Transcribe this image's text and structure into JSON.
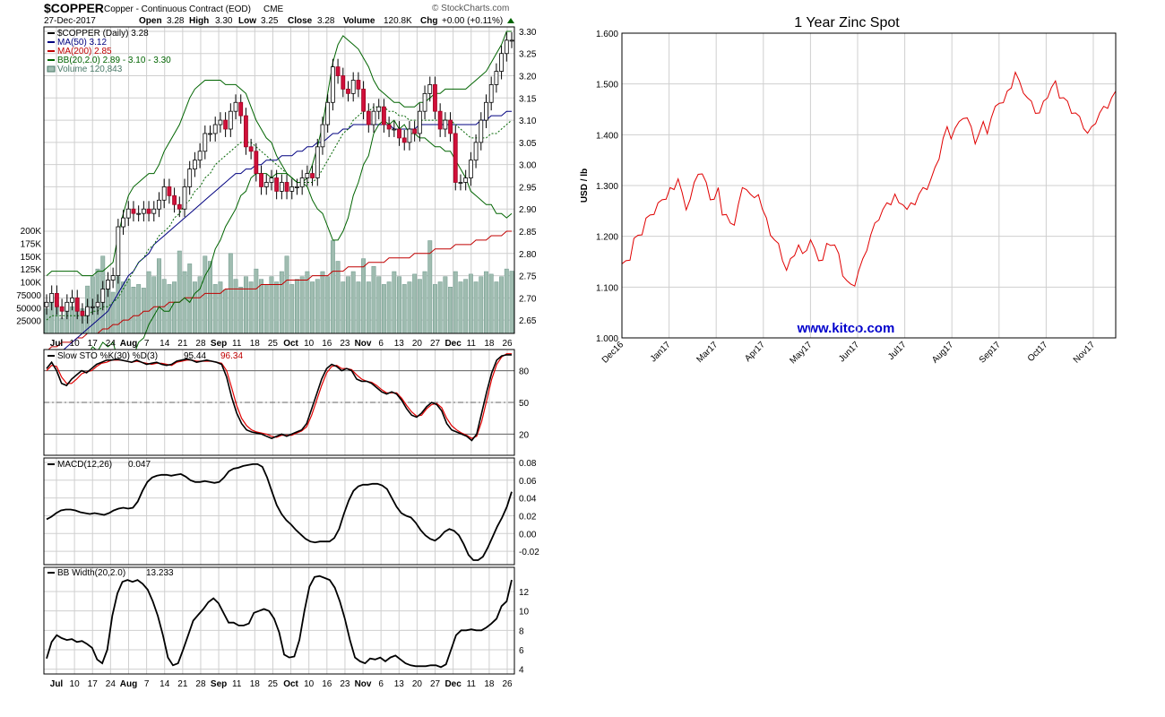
{
  "chart_data": [
    {
      "type": "candlestick",
      "header": {
        "symbol": "$COPPER",
        "subtitle": "Copper - Continuous Contract (EOD)",
        "exchange": "CME",
        "brand": "© StockCharts.com",
        "date": "27-Dec-2017",
        "open_label": "Open",
        "open": "3.28",
        "high_label": "High",
        "high": "3.30",
        "low_label": "Low",
        "low": "3.25",
        "close_label": "Close",
        "close": "3.28",
        "volume_label": "Volume",
        "volume": "120.8K",
        "chg_label": "Chg",
        "chg": "+0.00 (+0.11%)"
      },
      "legend": [
        {
          "text": "$COPPER (Daily) 3.28",
          "color": "#000000"
        },
        {
          "text": "MA(50) 3.12",
          "color": "#000080"
        },
        {
          "text": "MA(200) 2.85",
          "color": "#c00000"
        },
        {
          "text": "BB(20,2.0) 2.89 - 3.10 - 3.30",
          "color": "#006400"
        },
        {
          "text": "Volume 120,843",
          "color": "#4a7a68"
        }
      ],
      "price_ylim": [
        2.62,
        3.31
      ],
      "price_ticks": [
        "3.30",
        "3.25",
        "3.20",
        "3.15",
        "3.10",
        "3.05",
        "3.00",
        "2.95",
        "2.90",
        "2.85",
        "2.80",
        "2.75",
        "2.70",
        "2.65"
      ],
      "volume_ticks": [
        "200K",
        "175K",
        "150K",
        "125K",
        "100K",
        "75000",
        "50000",
        "25000"
      ],
      "volume_max": 200000,
      "x_labels": [
        "Jul",
        "10",
        "17",
        "24",
        "Aug",
        "7",
        "14",
        "21",
        "28",
        "Sep",
        "11",
        "18",
        "25",
        "Oct",
        "10",
        "16",
        "23",
        "Nov",
        "6",
        "13",
        "20",
        "27",
        "Dec",
        "11",
        "18",
        "26"
      ],
      "x_label_bold": [
        "Jul",
        "Aug",
        "Sep",
        "Oct",
        "Nov",
        "Dec"
      ],
      "closes": [
        2.69,
        2.71,
        2.68,
        2.67,
        2.69,
        2.7,
        2.67,
        2.66,
        2.68,
        2.68,
        2.69,
        2.72,
        2.74,
        2.75,
        2.86,
        2.88,
        2.9,
        2.89,
        2.89,
        2.9,
        2.89,
        2.9,
        2.92,
        2.95,
        2.93,
        2.91,
        2.9,
        2.95,
        2.99,
        3.01,
        3.03,
        3.07,
        3.07,
        3.09,
        3.1,
        3.08,
        3.12,
        3.14,
        3.11,
        3.04,
        3.03,
        2.98,
        2.95,
        2.96,
        2.97,
        2.94,
        2.96,
        2.94,
        2.95,
        2.95,
        2.97,
        2.98,
        2.97,
        3.04,
        3.09,
        3.14,
        3.22,
        3.2,
        3.17,
        3.16,
        3.19,
        3.17,
        3.12,
        3.09,
        3.12,
        3.13,
        3.09,
        3.08,
        3.08,
        3.06,
        3.05,
        3.08,
        3.07,
        3.12,
        3.16,
        3.18,
        3.12,
        3.08,
        3.1,
        3.07,
        2.96,
        2.96,
        2.97,
        3.01,
        3.05,
        3.1,
        3.14,
        3.18,
        3.21,
        3.25,
        3.28,
        3.28
      ],
      "volumes": [
        48000,
        72000,
        55000,
        30000,
        60000,
        52000,
        68000,
        48000,
        92000,
        110000,
        125000,
        150000,
        95000,
        80000,
        110000,
        100000,
        105000,
        90000,
        95000,
        88000,
        120000,
        110000,
        145000,
        105000,
        95000,
        100000,
        160000,
        120000,
        135000,
        100000,
        110000,
        150000,
        140000,
        95000,
        100000,
        85000,
        155000,
        105000,
        90000,
        110000,
        100000,
        125000,
        105000,
        95000,
        110000,
        100000,
        120000,
        150000,
        95000,
        105000,
        110000,
        120000,
        100000,
        105000,
        120000,
        110000,
        180000,
        140000,
        100000,
        110000,
        120000,
        100000,
        145000,
        100000,
        130000,
        110000,
        95000,
        100000,
        120000,
        110000,
        95000,
        100000,
        115000,
        105000,
        120000,
        180000,
        95000,
        100000,
        110000,
        90000,
        120000,
        100000,
        105000,
        115000,
        100000,
        110000,
        120000,
        115000,
        100000,
        110000,
        125000,
        120843
      ],
      "ma50": [
        2.56,
        2.57,
        2.58,
        2.58,
        2.59,
        2.6,
        2.61,
        2.62,
        2.63,
        2.64,
        2.65,
        2.66,
        2.67,
        2.69,
        2.71,
        2.73,
        2.75,
        2.76,
        2.78,
        2.79,
        2.8,
        2.82,
        2.83,
        2.84,
        2.85,
        2.86,
        2.87,
        2.88,
        2.89,
        2.9,
        2.91,
        2.92,
        2.93,
        2.94,
        2.95,
        2.96,
        2.97,
        2.98,
        2.98,
        2.99,
        2.99,
        3.0,
        3.0,
        3.01,
        3.01,
        3.01,
        3.02,
        3.02,
        3.02,
        3.03,
        3.03,
        3.04,
        3.04,
        3.05,
        3.05,
        3.06,
        3.07,
        3.07,
        3.08,
        3.08,
        3.09,
        3.09,
        3.09,
        3.09,
        3.09,
        3.09,
        3.09,
        3.09,
        3.08,
        3.08,
        3.08,
        3.08,
        3.08,
        3.09,
        3.09,
        3.09,
        3.09,
        3.09,
        3.09,
        3.09,
        3.09,
        3.09,
        3.09,
        3.09,
        3.09,
        3.1,
        3.1,
        3.11,
        3.11,
        3.11,
        3.12,
        3.12
      ],
      "ma200": [
        2.58,
        2.59,
        2.59,
        2.6,
        2.6,
        2.6,
        2.61,
        2.61,
        2.62,
        2.62,
        2.62,
        2.63,
        2.63,
        2.64,
        2.64,
        2.65,
        2.65,
        2.66,
        2.66,
        2.67,
        2.67,
        2.68,
        2.68,
        2.68,
        2.69,
        2.69,
        2.69,
        2.7,
        2.7,
        2.7,
        2.7,
        2.71,
        2.71,
        2.71,
        2.71,
        2.72,
        2.72,
        2.72,
        2.72,
        2.72,
        2.72,
        2.72,
        2.73,
        2.73,
        2.73,
        2.73,
        2.73,
        2.74,
        2.74,
        2.74,
        2.74,
        2.74,
        2.75,
        2.75,
        2.75,
        2.75,
        2.76,
        2.76,
        2.76,
        2.77,
        2.77,
        2.77,
        2.77,
        2.78,
        2.78,
        2.78,
        2.78,
        2.79,
        2.79,
        2.79,
        2.79,
        2.79,
        2.8,
        2.8,
        2.8,
        2.8,
        2.81,
        2.81,
        2.81,
        2.81,
        2.82,
        2.82,
        2.82,
        2.82,
        2.83,
        2.83,
        2.83,
        2.84,
        2.84,
        2.84,
        2.85,
        2.85
      ],
      "bb_upper": [
        2.75,
        2.76,
        2.76,
        2.76,
        2.76,
        2.76,
        2.76,
        2.75,
        2.75,
        2.75,
        2.76,
        2.76,
        2.77,
        2.78,
        2.84,
        2.89,
        2.93,
        2.95,
        2.96,
        2.97,
        2.98,
        2.98,
        3.0,
        3.03,
        3.05,
        3.07,
        3.09,
        3.12,
        3.15,
        3.17,
        3.18,
        3.19,
        3.19,
        3.19,
        3.19,
        3.18,
        3.18,
        3.18,
        3.17,
        3.16,
        3.13,
        3.1,
        3.08,
        3.06,
        3.05,
        3.02,
        3.0,
        2.98,
        2.97,
        2.96,
        2.96,
        2.97,
        3.0,
        3.04,
        3.09,
        3.16,
        3.23,
        3.27,
        3.29,
        3.28,
        3.27,
        3.26,
        3.24,
        3.22,
        3.19,
        3.17,
        3.16,
        3.15,
        3.14,
        3.14,
        3.13,
        3.13,
        3.13,
        3.14,
        3.14,
        3.15,
        3.16,
        3.16,
        3.17,
        3.17,
        3.17,
        3.17,
        3.17,
        3.18,
        3.19,
        3.2,
        3.21,
        3.23,
        3.25,
        3.27,
        3.3,
        3.3
      ],
      "bb_mid": [
        2.65,
        2.66,
        2.66,
        2.66,
        2.66,
        2.66,
        2.66,
        2.66,
        2.66,
        2.67,
        2.67,
        2.68,
        2.68,
        2.69,
        2.7,
        2.72,
        2.74,
        2.76,
        2.78,
        2.79,
        2.81,
        2.82,
        2.84,
        2.85,
        2.86,
        2.88,
        2.89,
        2.91,
        2.92,
        2.94,
        2.95,
        2.97,
        2.98,
        3.0,
        3.01,
        3.02,
        3.03,
        3.04,
        3.05,
        3.05,
        3.05,
        3.04,
        3.03,
        3.02,
        3.01,
        3.0,
        2.99,
        2.98,
        2.97,
        2.96,
        2.96,
        2.96,
        2.96,
        2.97,
        2.99,
        3.01,
        3.03,
        3.05,
        3.07,
        3.08,
        3.1,
        3.11,
        3.12,
        3.12,
        3.13,
        3.13,
        3.13,
        3.12,
        3.12,
        3.11,
        3.11,
        3.1,
        3.1,
        3.1,
        3.1,
        3.1,
        3.1,
        3.1,
        3.1,
        3.1,
        3.09,
        3.08,
        3.07,
        3.06,
        3.06,
        3.06,
        3.06,
        3.07,
        3.07,
        3.08,
        3.09,
        3.1
      ],
      "bb_lower": [
        2.55,
        2.56,
        2.56,
        2.56,
        2.56,
        2.56,
        2.56,
        2.57,
        2.57,
        2.59,
        2.58,
        2.6,
        2.59,
        2.6,
        2.56,
        2.55,
        2.55,
        2.57,
        2.6,
        2.61,
        2.64,
        2.66,
        2.68,
        2.67,
        2.67,
        2.69,
        2.69,
        2.7,
        2.69,
        2.71,
        2.72,
        2.75,
        2.77,
        2.81,
        2.83,
        2.86,
        2.88,
        2.9,
        2.93,
        2.94,
        2.97,
        2.98,
        2.98,
        2.98,
        2.97,
        2.98,
        2.98,
        2.98,
        2.97,
        2.96,
        2.96,
        2.95,
        2.92,
        2.9,
        2.89,
        2.86,
        2.83,
        2.83,
        2.85,
        2.88,
        2.93,
        2.96,
        3.0,
        3.02,
        3.07,
        3.09,
        3.1,
        3.09,
        3.1,
        3.08,
        3.09,
        3.07,
        3.07,
        3.06,
        3.06,
        3.05,
        3.04,
        3.04,
        3.03,
        3.03,
        3.01,
        2.99,
        2.97,
        2.94,
        2.93,
        2.92,
        2.91,
        2.91,
        2.89,
        2.89,
        2.88,
        2.89
      ]
    },
    {
      "type": "line",
      "indicator": "Slow STO %K(30) %D(3)",
      "legend_prefix": "Slow STO %K(30) %D(3)",
      "k_value": "95.44",
      "d_value": "96.34",
      "ylim": [
        0,
        100
      ],
      "ticks": [
        "80",
        "50",
        "20"
      ],
      "k": [
        82,
        88,
        80,
        68,
        66,
        72,
        76,
        80,
        78,
        82,
        86,
        88,
        90,
        90,
        91,
        90,
        89,
        88,
        90,
        88,
        86,
        87,
        88,
        86,
        85,
        86,
        89,
        90,
        91,
        90,
        88,
        89,
        90,
        89,
        88,
        86,
        74,
        55,
        40,
        30,
        24,
        22,
        21,
        20,
        18,
        16,
        18,
        20,
        18,
        20,
        22,
        24,
        30,
        44,
        58,
        72,
        82,
        86,
        84,
        80,
        82,
        80,
        72,
        70,
        70,
        68,
        64,
        60,
        58,
        60,
        58,
        52,
        44,
        38,
        36,
        40,
        46,
        50,
        48,
        42,
        30,
        24,
        22,
        20,
        18,
        14,
        20,
        40,
        60,
        78,
        90,
        94,
        95,
        95
      ],
      "d": [
        80,
        85,
        84,
        74,
        68,
        68,
        72,
        77,
        79,
        80,
        84,
        87,
        88,
        90,
        90,
        90,
        89,
        88,
        89,
        88,
        87,
        86,
        87,
        87,
        86,
        85,
        88,
        89,
        90,
        90,
        89,
        89,
        89,
        89,
        88,
        87,
        80,
        64,
        47,
        35,
        28,
        24,
        22,
        21,
        20,
        18,
        17,
        19,
        19,
        19,
        21,
        23,
        27,
        38,
        52,
        66,
        78,
        84,
        85,
        82,
        82,
        81,
        76,
        72,
        70,
        69,
        66,
        62,
        59,
        59,
        59,
        54,
        47,
        41,
        37,
        38,
        44,
        48,
        49,
        45,
        35,
        28,
        24,
        21,
        19,
        16,
        18,
        32,
        52,
        72,
        86,
        93,
        96,
        96
      ]
    },
    {
      "type": "line",
      "indicator": "MACD(12,26)",
      "legend_prefix": "MACD(12,26)",
      "value": "0.047",
      "ylim": [
        -0.035,
        0.085
      ],
      "ticks": [
        "0.08",
        "0.06",
        "0.04",
        "0.02",
        "0.00",
        "-0.02"
      ],
      "values": [
        0.016,
        0.019,
        0.023,
        0.026,
        0.027,
        0.027,
        0.026,
        0.024,
        0.023,
        0.022,
        0.023,
        0.022,
        0.021,
        0.023,
        0.026,
        0.028,
        0.029,
        0.028,
        0.029,
        0.036,
        0.048,
        0.058,
        0.063,
        0.065,
        0.066,
        0.066,
        0.065,
        0.066,
        0.067,
        0.064,
        0.06,
        0.058,
        0.058,
        0.059,
        0.058,
        0.057,
        0.058,
        0.063,
        0.07,
        0.073,
        0.074,
        0.076,
        0.077,
        0.078,
        0.078,
        0.075,
        0.063,
        0.047,
        0.032,
        0.022,
        0.015,
        0.01,
        0.004,
        -0.001,
        -0.006,
        -0.009,
        -0.01,
        -0.009,
        -0.009,
        -0.009,
        -0.005,
        0.005,
        0.022,
        0.037,
        0.048,
        0.053,
        0.055,
        0.055,
        0.056,
        0.056,
        0.054,
        0.05,
        0.04,
        0.03,
        0.023,
        0.02,
        0.018,
        0.012,
        0.004,
        -0.002,
        -0.006,
        -0.008,
        -0.004,
        0.002,
        0.005,
        0.003,
        -0.002,
        -0.012,
        -0.024,
        -0.03,
        -0.03,
        -0.026,
        -0.016,
        -0.004,
        0.008,
        0.018,
        0.03,
        0.047
      ]
    },
    {
      "type": "line",
      "indicator": "BB Width(20,2.0)",
      "legend_prefix": "BB Width(20,2.0)",
      "value": "13.233",
      "ylim": [
        3.5,
        14.5
      ],
      "ticks": [
        "12",
        "10",
        "8",
        "6",
        "4"
      ],
      "values": [
        5.1,
        6.8,
        7.5,
        7.2,
        7.0,
        7.1,
        6.8,
        6.9,
        6.6,
        6.2,
        5.0,
        4.6,
        6.0,
        9.5,
        11.8,
        13.0,
        13.2,
        13.0,
        13.2,
        12.8,
        12.2,
        11.0,
        9.5,
        7.5,
        5.2,
        4.4,
        4.6,
        6.0,
        7.5,
        9.0,
        9.6,
        10.2,
        10.9,
        11.3,
        10.8,
        9.8,
        8.8,
        8.8,
        8.5,
        8.5,
        8.7,
        9.8,
        10.0,
        10.2,
        10.0,
        9.2,
        7.8,
        5.5,
        5.2,
        5.3,
        7.0,
        10.0,
        12.5,
        13.5,
        13.6,
        13.4,
        13.2,
        12.4,
        11.0,
        9.2,
        7.0,
        5.2,
        4.8,
        4.6,
        5.1,
        5.0,
        5.2,
        4.8,
        5.2,
        5.4,
        5.0,
        4.6,
        4.4,
        4.3,
        4.3,
        4.3,
        4.4,
        4.4,
        4.2,
        4.5,
        6.0,
        7.5,
        8.0,
        8.0,
        8.1,
        8.0,
        8.0,
        8.3,
        8.7,
        9.2,
        10.5,
        11.0,
        13.2
      ]
    },
    {
      "type": "line",
      "title": "1 Year Zinc Spot",
      "ylabel": "USD / lb",
      "watermark": "www.kitco.com",
      "ylim": [
        1.0,
        1.6
      ],
      "y_ticks": [
        "1.600",
        "1.500",
        "1.400",
        "1.300",
        "1.200",
        "1.100",
        "1.000"
      ],
      "x_labels": [
        "Dec16",
        "Jan17",
        "Mar17",
        "Apr17",
        "May17",
        "Jun17",
        "Jul17",
        "Aug17",
        "Sep17",
        "Oct17",
        "Nov17"
      ],
      "series_color": "#e00000",
      "values": [
        1.14,
        1.16,
        1.15,
        1.19,
        1.21,
        1.2,
        1.23,
        1.25,
        1.24,
        1.26,
        1.28,
        1.27,
        1.29,
        1.3,
        1.31,
        1.28,
        1.26,
        1.27,
        1.3,
        1.33,
        1.32,
        1.3,
        1.28,
        1.27,
        1.29,
        1.25,
        1.24,
        1.22,
        1.23,
        1.26,
        1.29,
        1.3,
        1.28,
        1.27,
        1.29,
        1.25,
        1.23,
        1.21,
        1.19,
        1.18,
        1.16,
        1.13,
        1.15,
        1.17,
        1.18,
        1.16,
        1.18,
        1.19,
        1.17,
        1.16,
        1.15,
        1.18,
        1.19,
        1.18,
        1.16,
        1.13,
        1.11,
        1.1,
        1.11,
        1.13,
        1.15,
        1.18,
        1.2,
        1.22,
        1.24,
        1.25,
        1.26,
        1.27,
        1.28,
        1.26,
        1.27,
        1.25,
        1.26,
        1.27,
        1.28,
        1.29,
        1.3,
        1.31,
        1.33,
        1.36,
        1.39,
        1.41,
        1.4,
        1.41,
        1.42,
        1.44,
        1.43,
        1.41,
        1.39,
        1.4,
        1.42,
        1.41,
        1.43,
        1.45,
        1.47,
        1.46,
        1.48,
        1.5,
        1.52,
        1.5,
        1.49,
        1.47,
        1.46,
        1.45,
        1.44,
        1.46,
        1.48,
        1.49,
        1.5,
        1.48,
        1.47,
        1.46,
        1.45,
        1.44,
        1.43,
        1.42,
        1.4,
        1.41,
        1.43,
        1.44,
        1.45,
        1.46,
        1.47,
        1.48
      ]
    }
  ]
}
